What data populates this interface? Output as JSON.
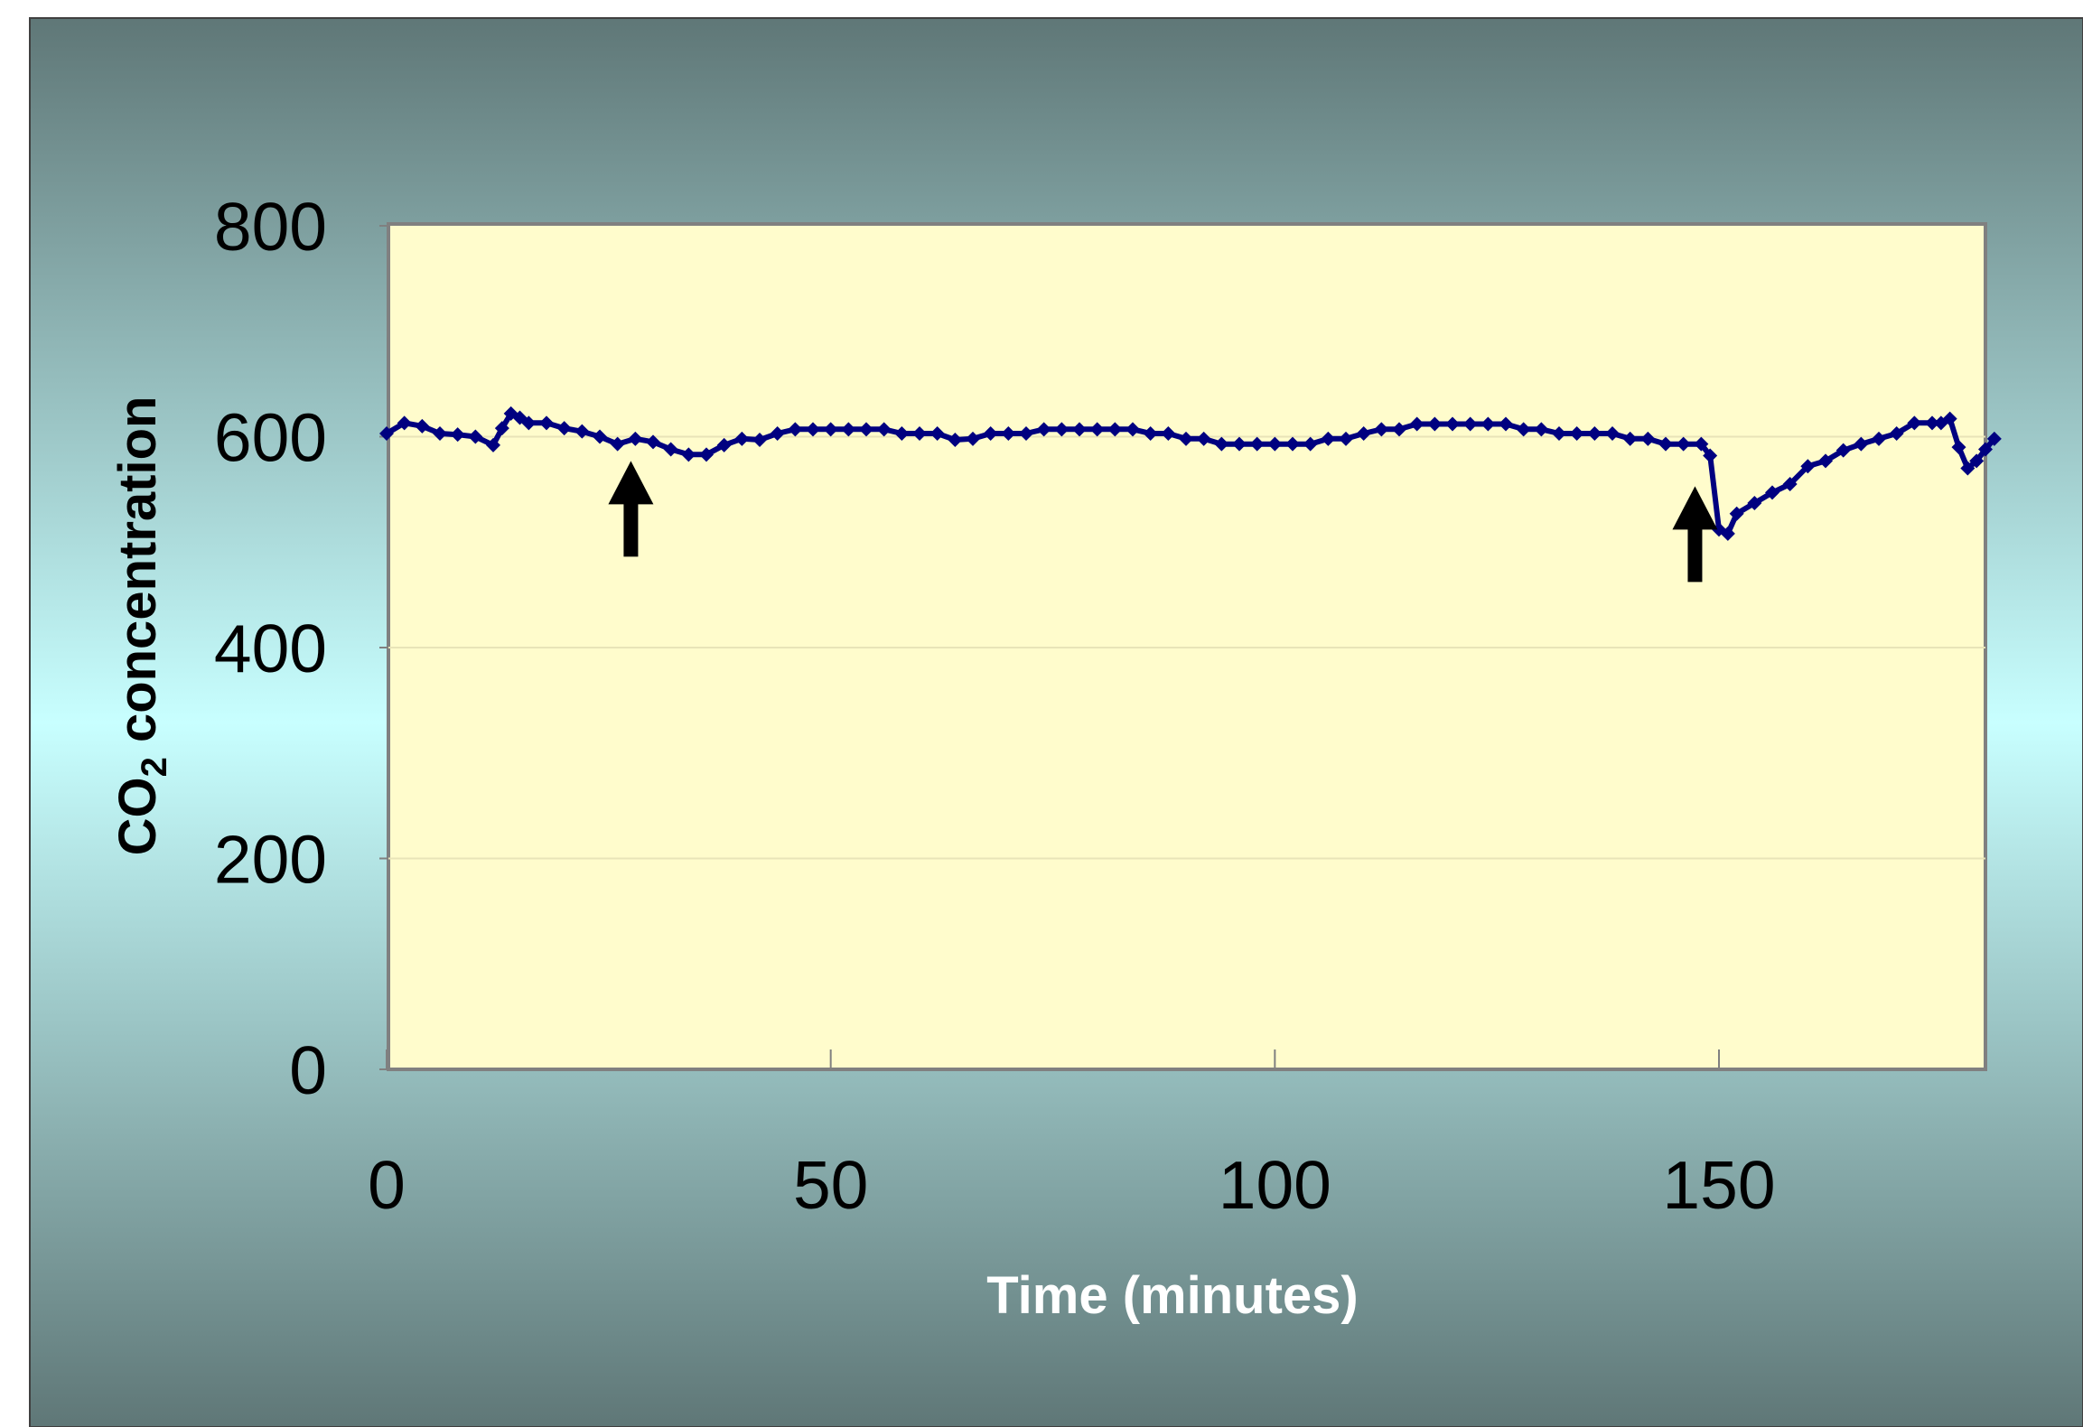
{
  "chart_data": {
    "type": "line",
    "title": "",
    "xlabel": "Time (minutes)",
    "ylabel_main": "CO",
    "ylabel_sub": "2",
    "ylabel_rest": " concentration",
    "xlim": [
      0,
      180
    ],
    "ylim": [
      0,
      800
    ],
    "x_ticks": [
      0,
      50,
      100,
      150
    ],
    "y_ticks": [
      0,
      200,
      400,
      600,
      800
    ],
    "x_tick_labels": [
      "0",
      "50",
      "100",
      "150"
    ],
    "y_tick_labels": [
      "0",
      "200",
      "400",
      "600",
      "800"
    ],
    "grid": "horizontal",
    "legend": "none",
    "series": [
      {
        "color": "#000080",
        "marker": "diamond",
        "points": [
          [
            0,
            603
          ],
          [
            2,
            613
          ],
          [
            4,
            610
          ],
          [
            6,
            603
          ],
          [
            8,
            602
          ],
          [
            10,
            600
          ],
          [
            12,
            592
          ],
          [
            13,
            608
          ],
          [
            14,
            622
          ],
          [
            15,
            618
          ],
          [
            16,
            613
          ],
          [
            18,
            613
          ],
          [
            20,
            608
          ],
          [
            22,
            605
          ],
          [
            24,
            600
          ],
          [
            26,
            593
          ],
          [
            28,
            598
          ],
          [
            30,
            595
          ],
          [
            32,
            588
          ],
          [
            34,
            583
          ],
          [
            36,
            583
          ],
          [
            38,
            592
          ],
          [
            40,
            598
          ],
          [
            42,
            597
          ],
          [
            44,
            603
          ],
          [
            46,
            607
          ],
          [
            48,
            607
          ],
          [
            50,
            607
          ],
          [
            52,
            607
          ],
          [
            54,
            607
          ],
          [
            56,
            607
          ],
          [
            58,
            603
          ],
          [
            60,
            603
          ],
          [
            62,
            603
          ],
          [
            64,
            597
          ],
          [
            66,
            598
          ],
          [
            68,
            603
          ],
          [
            70,
            603
          ],
          [
            72,
            603
          ],
          [
            74,
            607
          ],
          [
            76,
            607
          ],
          [
            78,
            607
          ],
          [
            80,
            607
          ],
          [
            82,
            607
          ],
          [
            84,
            607
          ],
          [
            86,
            603
          ],
          [
            88,
            603
          ],
          [
            90,
            598
          ],
          [
            92,
            598
          ],
          [
            94,
            593
          ],
          [
            96,
            593
          ],
          [
            98,
            593
          ],
          [
            100,
            593
          ],
          [
            102,
            593
          ],
          [
            104,
            593
          ],
          [
            106,
            598
          ],
          [
            108,
            598
          ],
          [
            110,
            603
          ],
          [
            112,
            607
          ],
          [
            114,
            607
          ],
          [
            116,
            612
          ],
          [
            118,
            612
          ],
          [
            120,
            612
          ],
          [
            122,
            612
          ],
          [
            124,
            612
          ],
          [
            126,
            612
          ],
          [
            128,
            607
          ],
          [
            130,
            607
          ],
          [
            132,
            603
          ],
          [
            134,
            603
          ],
          [
            136,
            603
          ],
          [
            138,
            603
          ],
          [
            140,
            598
          ],
          [
            142,
            598
          ],
          [
            144,
            593
          ],
          [
            146,
            593
          ],
          [
            148,
            593
          ],
          [
            149,
            582
          ],
          [
            150,
            512
          ],
          [
            151,
            508
          ],
          [
            152,
            527
          ],
          [
            154,
            537
          ],
          [
            156,
            547
          ],
          [
            158,
            555
          ],
          [
            160,
            572
          ],
          [
            162,
            577
          ],
          [
            164,
            587
          ],
          [
            166,
            593
          ],
          [
            168,
            598
          ],
          [
            170,
            603
          ],
          [
            172,
            613
          ],
          [
            174,
            613
          ],
          [
            175,
            613
          ],
          [
            176,
            617
          ],
          [
            177,
            590
          ],
          [
            178,
            570
          ],
          [
            179,
            577
          ],
          [
            180,
            588
          ],
          [
            181,
            598
          ]
        ]
      }
    ],
    "annotations": [
      {
        "type": "arrow-up",
        "x": 27.5,
        "y_tip": 577
      },
      {
        "type": "arrow-up",
        "x": 147.3,
        "y_tip": 553
      }
    ],
    "colors": {
      "plot_background": "#FFFCCC",
      "frame_background_edge": "#5F7777",
      "frame_background_middle": "#C8FFFF",
      "line": "#000080"
    }
  }
}
